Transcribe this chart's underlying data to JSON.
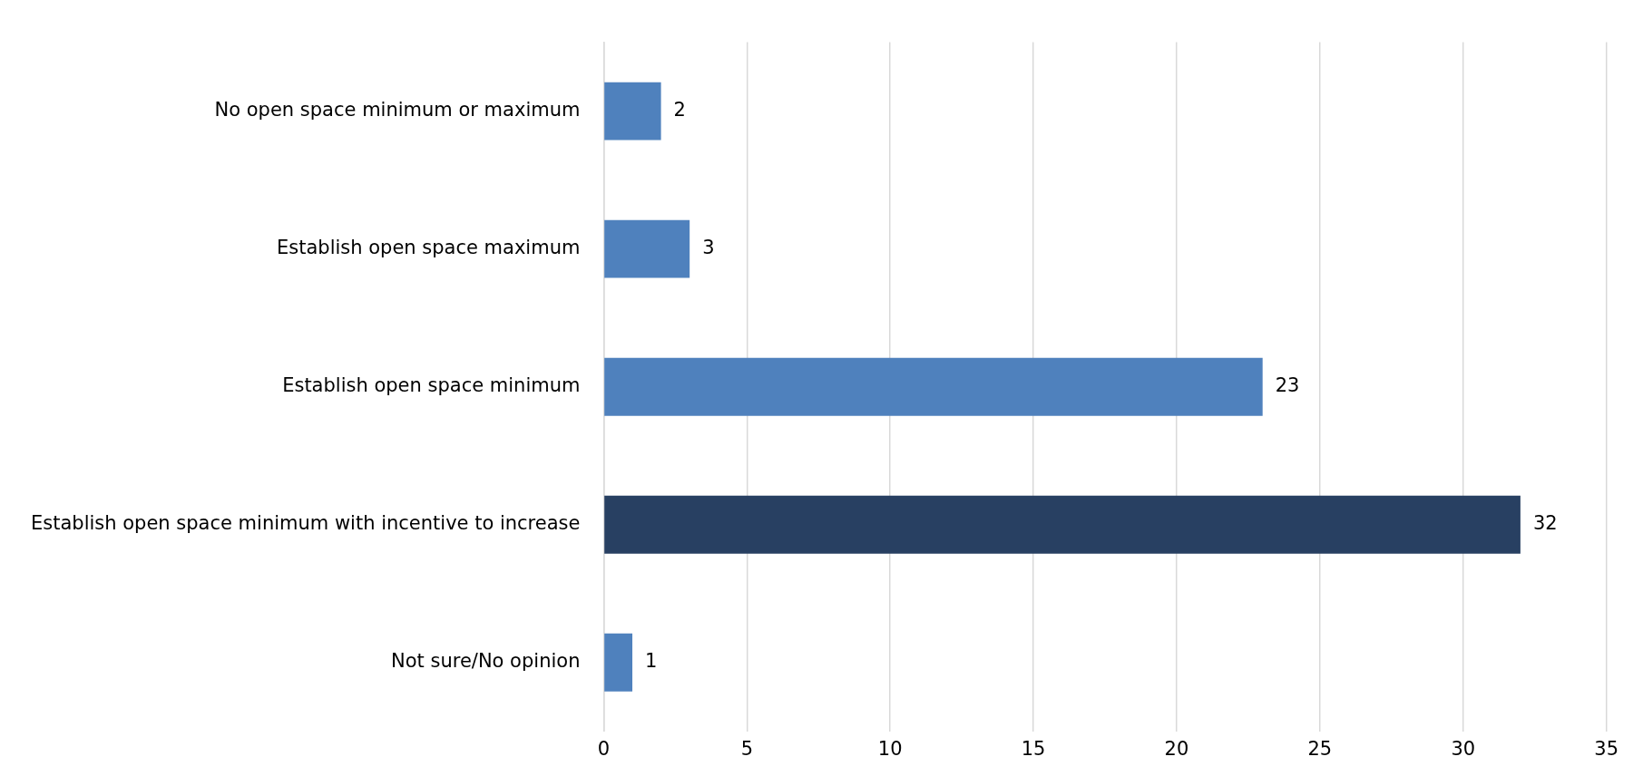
{
  "chart_data": {
    "type": "bar",
    "orientation": "horizontal",
    "categories": [
      "No open space minimum or maximum",
      "Establish open space maximum",
      "Establish open space minimum",
      "Establish open space minimum with incentive to increase",
      "Not sure/No opinion"
    ],
    "values": [
      2,
      3,
      23,
      32,
      1
    ],
    "colors": [
      "#4f81bd",
      "#4f81bd",
      "#4f81bd",
      "#284062",
      "#4f81bd"
    ],
    "xlim": [
      0,
      35
    ],
    "xticks": [
      0,
      5,
      10,
      15,
      20,
      25,
      30,
      35
    ],
    "grid": "x",
    "legend": false,
    "data_labels": true
  }
}
